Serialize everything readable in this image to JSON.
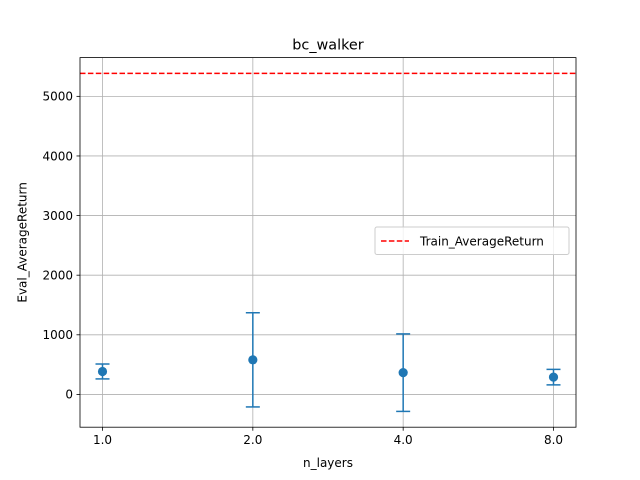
{
  "chart_data": {
    "type": "scatter",
    "title": "bc_walker",
    "xlabel": "n_layers",
    "ylabel": "Eval_AverageReturn",
    "x_scale": "categorical",
    "categories": [
      "1.0",
      "2.0",
      "4.0",
      "8.0"
    ],
    "ylim": [
      -550,
      5650
    ],
    "yticks": [
      0,
      1000,
      2000,
      3000,
      4000,
      5000
    ],
    "grid": true,
    "legend_position": "center-right",
    "series": [
      {
        "name": "",
        "kind": "errorbar",
        "color": "#1f77b4",
        "values": [
          385,
          580,
          365,
          290
        ],
        "errors": [
          125,
          790,
          650,
          130
        ]
      }
    ],
    "reference_lines": [
      {
        "name": "Train_AverageReturn",
        "y": 5385,
        "color": "#ff0000",
        "style": "dashed"
      }
    ]
  }
}
